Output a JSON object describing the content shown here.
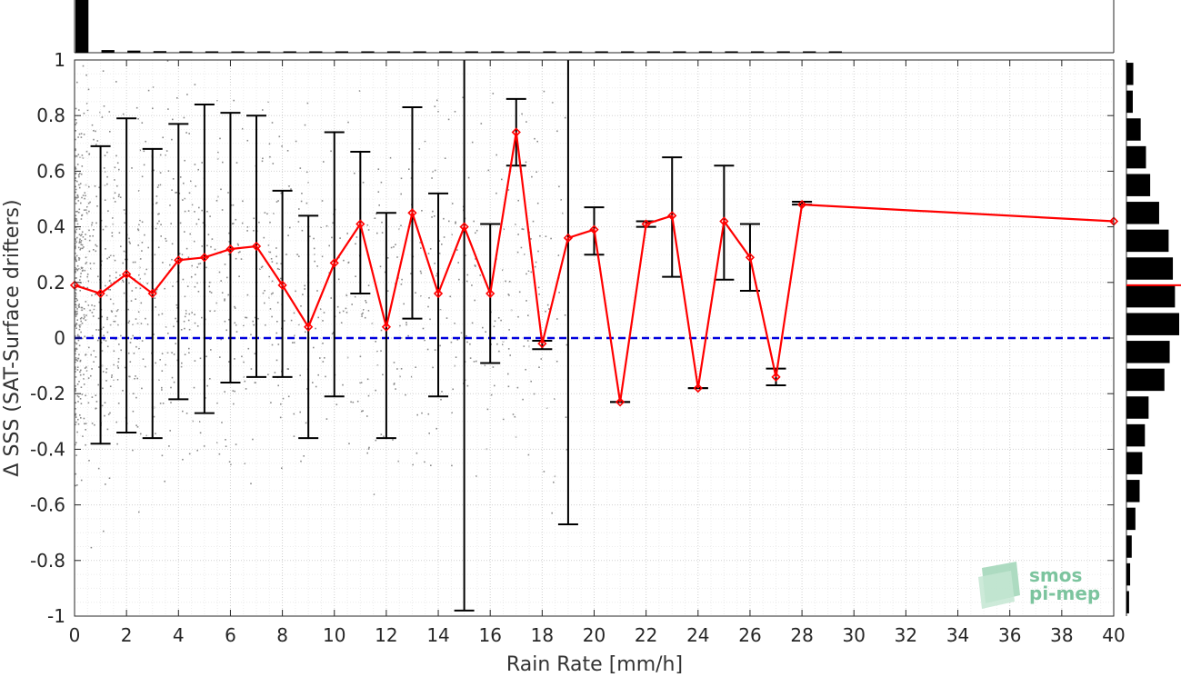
{
  "chart_data": {
    "type": "line",
    "xlabel": "Rain Rate [mm/h]",
    "ylabel": "Δ SSS (SAT-Surface drifters)",
    "xlim": [
      0,
      40
    ],
    "ylim": [
      -1,
      1
    ],
    "x_tick_labels": [
      "0",
      "2",
      "4",
      "6",
      "8",
      "10",
      "12",
      "14",
      "16",
      "18",
      "20",
      "22",
      "24",
      "26",
      "28",
      "30",
      "32",
      "34",
      "36",
      "38",
      "40"
    ],
    "y_tick_labels": [
      "1",
      "0.8",
      "0.6",
      "0.4",
      "0.2",
      "0",
      "-0.2",
      "-0.4",
      "-0.6",
      "-0.8",
      "-1"
    ],
    "grid": true,
    "series": [
      {
        "x": [
          0,
          1,
          2,
          3,
          4,
          5,
          6,
          7,
          8,
          9,
          10,
          11,
          12,
          13,
          14,
          15,
          16,
          17,
          18,
          19,
          20,
          21,
          22,
          23,
          24,
          25,
          26,
          27,
          28,
          40
        ],
        "y": [
          0.19,
          0.16,
          0.23,
          0.16,
          0.28,
          0.29,
          0.32,
          0.33,
          0.19,
          0.04,
          0.27,
          0.41,
          0.04,
          0.45,
          0.16,
          0.4,
          0.16,
          0.74,
          -0.02,
          0.36,
          0.39,
          -0.23,
          0.41,
          0.44,
          -0.18,
          0.42,
          0.29,
          -0.14,
          0.48,
          0.42
        ],
        "err_low": [
          null,
          -0.38,
          -0.34,
          -0.36,
          -0.22,
          -0.27,
          -0.16,
          -0.14,
          -0.14,
          -0.36,
          -0.21,
          0.16,
          -0.36,
          0.07,
          -0.21,
          -0.98,
          -0.09,
          0.62,
          -0.04,
          -0.67,
          0.3,
          -0.23,
          0.4,
          0.22,
          -0.18,
          0.21,
          0.17,
          -0.17,
          0.48,
          null
        ],
        "err_high": [
          null,
          0.69,
          0.79,
          0.68,
          0.77,
          0.84,
          0.81,
          0.8,
          0.53,
          0.44,
          0.74,
          0.67,
          0.45,
          0.83,
          0.52,
          1.0,
          0.41,
          0.86,
          -0.01,
          1.0,
          0.47,
          -0.23,
          0.42,
          0.65,
          -0.18,
          0.62,
          0.41,
          -0.11,
          0.49,
          null
        ]
      }
    ],
    "zero_line": 0,
    "top_histogram": [
      1.0,
      0.05,
      0.04,
      0.03,
      0.02,
      0.02,
      0.015,
      0.01,
      0.01,
      0.008,
      0.006,
      0.005,
      0.004,
      0.003,
      0.003,
      0.002,
      0.002,
      0.002,
      0.002,
      0.002,
      0.001,
      0.001,
      0.001,
      0.001,
      0.001,
      0.001,
      0.001,
      0.001,
      0.001,
      0.001,
      0,
      0,
      0,
      0,
      0,
      0,
      0,
      0,
      0,
      0
    ],
    "right_histogram": {
      "bin_centers": [
        0.95,
        0.85,
        0.75,
        0.65,
        0.55,
        0.45,
        0.35,
        0.25,
        0.15,
        0.05,
        -0.05,
        -0.15,
        -0.25,
        -0.35,
        -0.45,
        -0.55,
        -0.65,
        -0.75,
        -0.85,
        -0.95
      ],
      "counts": [
        0.13,
        0.12,
        0.27,
        0.37,
        0.45,
        0.62,
        0.8,
        0.88,
        0.92,
        1.0,
        0.82,
        0.72,
        0.42,
        0.35,
        0.3,
        0.25,
        0.17,
        0.1,
        0.07,
        0.05
      ],
      "mean": 0.19
    },
    "colors": {
      "series": "#ff0000",
      "errorbar": "#000000",
      "zero_line": "#0000dd",
      "scatter": "#8a8a8a",
      "histogram": "#000000"
    }
  },
  "watermark": {
    "line1": "smos",
    "line2": "pi-mep",
    "color": "#5cb48a"
  }
}
